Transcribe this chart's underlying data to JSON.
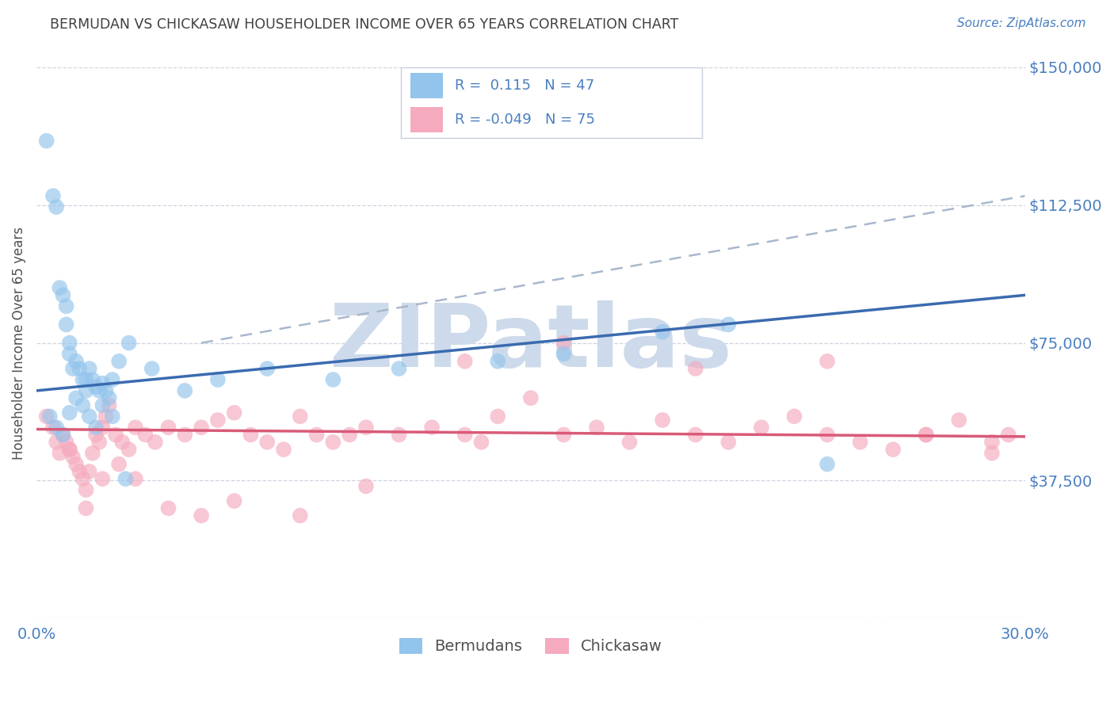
{
  "title": "BERMUDAN VS CHICKASAW HOUSEHOLDER INCOME OVER 65 YEARS CORRELATION CHART",
  "source": "Source: ZipAtlas.com",
  "ylabel": "Householder Income Over 65 years",
  "xmin": 0.0,
  "xmax": 30.0,
  "ymin": 0,
  "ymax": 150000,
  "yticks": [
    0,
    37500,
    75000,
    112500,
    150000
  ],
  "ytick_labels": [
    "",
    "$37,500",
    "$75,000",
    "$112,500",
    "$150,000"
  ],
  "background_color": "#ffffff",
  "watermark": "ZIPatlas",
  "watermark_color": "#cddaeb",
  "blue_color": "#93C4EC",
  "pink_color": "#F5AABE",
  "blue_line_color": "#3A6BAF",
  "pink_line_color": "#D95A78",
  "gray_dash_color": "#A8B8CC",
  "title_color": "#404040",
  "axis_label_color": "#4A7FC0",
  "bermudans_label": "Bermudans",
  "chickasaw_label": "Chickasaw",
  "blue_trend_x0": 0.0,
  "blue_trend_y0": 62000,
  "blue_trend_x1": 30.0,
  "blue_trend_y1": 88000,
  "pink_trend_x0": 0.0,
  "pink_trend_y0": 51500,
  "pink_trend_x1": 30.0,
  "pink_trend_y1": 49500,
  "gray_dash_x0": 5.0,
  "gray_dash_y0": 75000,
  "gray_dash_x1": 30.0,
  "gray_dash_y1": 115000,
  "bermudans_x": [
    0.3,
    0.5,
    0.6,
    0.7,
    0.8,
    0.9,
    0.9,
    1.0,
    1.0,
    1.1,
    1.2,
    1.3,
    1.4,
    1.5,
    1.5,
    1.6,
    1.7,
    1.8,
    1.9,
    2.0,
    2.1,
    2.2,
    2.3,
    2.5,
    2.8,
    3.5,
    4.5,
    5.5,
    7.0,
    9.0,
    11.0,
    14.0,
    16.0,
    19.0,
    21.0,
    24.0,
    0.4,
    0.6,
    0.8,
    1.0,
    1.2,
    1.4,
    1.6,
    1.8,
    2.0,
    2.3,
    2.7
  ],
  "bermudans_y": [
    130000,
    115000,
    112000,
    90000,
    88000,
    85000,
    80000,
    75000,
    72000,
    68000,
    70000,
    68000,
    65000,
    65000,
    62000,
    68000,
    65000,
    63000,
    62000,
    64000,
    62000,
    60000,
    65000,
    70000,
    75000,
    68000,
    62000,
    65000,
    68000,
    65000,
    68000,
    70000,
    72000,
    78000,
    80000,
    42000,
    55000,
    52000,
    50000,
    56000,
    60000,
    58000,
    55000,
    52000,
    58000,
    55000,
    38000
  ],
  "chickasaw_x": [
    0.3,
    0.5,
    0.6,
    0.7,
    0.8,
    0.9,
    1.0,
    1.1,
    1.2,
    1.3,
    1.4,
    1.5,
    1.6,
    1.7,
    1.8,
    1.9,
    2.0,
    2.1,
    2.2,
    2.4,
    2.6,
    2.8,
    3.0,
    3.3,
    3.6,
    4.0,
    4.5,
    5.0,
    5.5,
    6.0,
    6.5,
    7.0,
    7.5,
    8.0,
    8.5,
    9.0,
    9.5,
    10.0,
    11.0,
    12.0,
    13.0,
    13.5,
    14.0,
    15.0,
    16.0,
    17.0,
    18.0,
    19.0,
    20.0,
    21.0,
    22.0,
    23.0,
    24.0,
    25.0,
    26.0,
    27.0,
    28.0,
    29.0,
    29.5,
    1.0,
    1.5,
    2.0,
    2.5,
    3.0,
    4.0,
    5.0,
    6.0,
    8.0,
    10.0,
    13.0,
    16.0,
    20.0,
    24.0,
    27.0,
    29.0
  ],
  "chickasaw_y": [
    55000,
    52000,
    48000,
    45000,
    50000,
    48000,
    46000,
    44000,
    42000,
    40000,
    38000,
    35000,
    40000,
    45000,
    50000,
    48000,
    52000,
    55000,
    58000,
    50000,
    48000,
    46000,
    52000,
    50000,
    48000,
    52000,
    50000,
    52000,
    54000,
    56000,
    50000,
    48000,
    46000,
    55000,
    50000,
    48000,
    50000,
    52000,
    50000,
    52000,
    50000,
    48000,
    55000,
    60000,
    50000,
    52000,
    48000,
    54000,
    50000,
    48000,
    52000,
    55000,
    50000,
    48000,
    46000,
    50000,
    54000,
    48000,
    50000,
    46000,
    30000,
    38000,
    42000,
    38000,
    30000,
    28000,
    32000,
    28000,
    36000,
    70000,
    75000,
    68000,
    70000,
    50000,
    45000
  ]
}
